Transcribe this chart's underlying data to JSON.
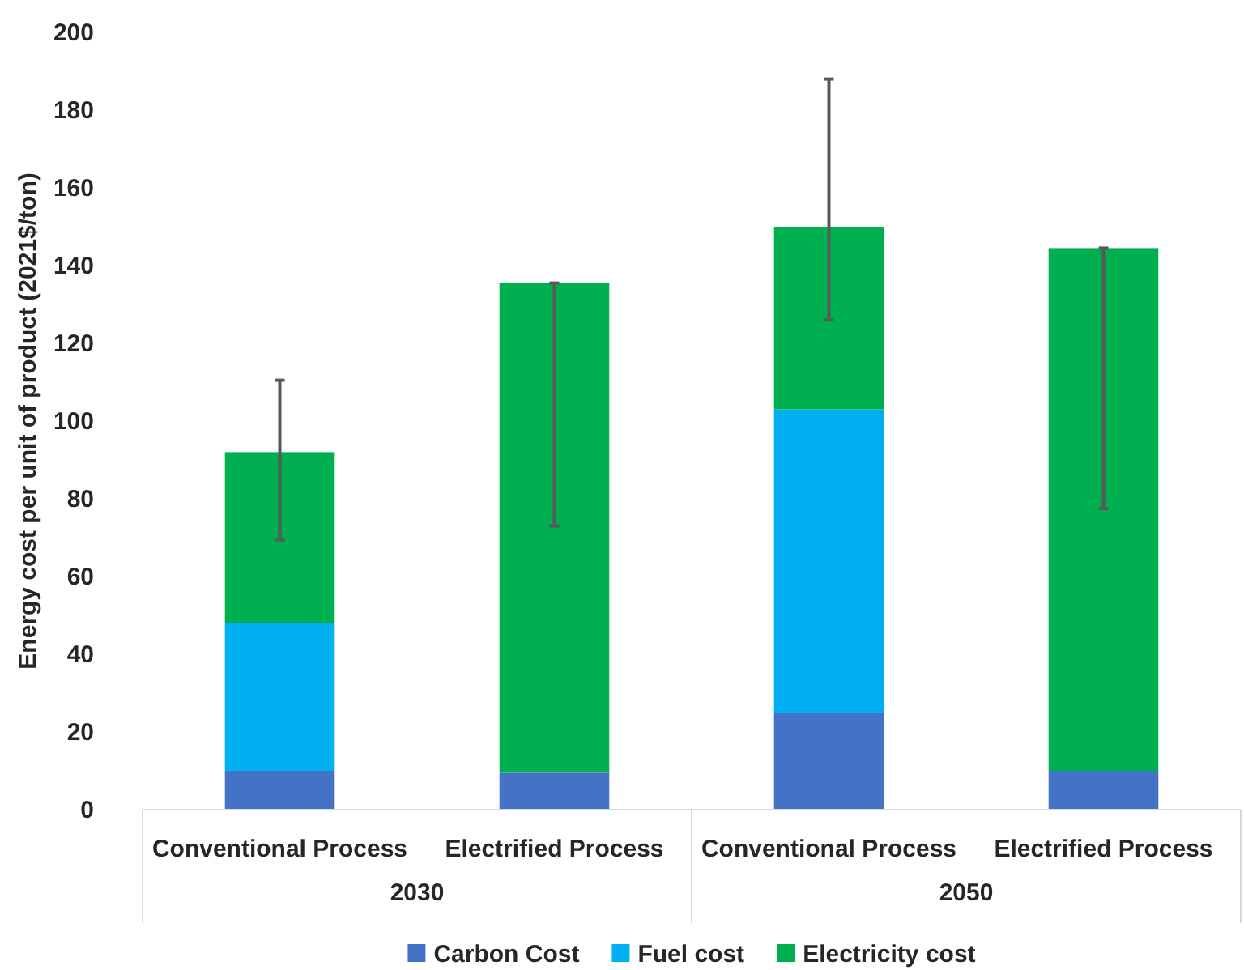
{
  "chart_data": {
    "type": "bar",
    "stacked": true,
    "ylabel": "Energy cost per unit of product (2021$/ton)",
    "categories": [
      "Conventional Process",
      "Electrified Process",
      "Conventional Process",
      "Electrified Process"
    ],
    "annotations": [
      "2030",
      "2050"
    ],
    "ylim": [
      0,
      200
    ],
    "yticks": [
      0,
      20,
      40,
      60,
      80,
      100,
      120,
      140,
      160,
      180,
      200
    ],
    "grid": false,
    "legend": "bottom",
    "series": [
      {
        "name": "Carbon Cost",
        "color": "#4472c4",
        "values": [
          10,
          9.5,
          25,
          10
        ]
      },
      {
        "name": "Fuel cost",
        "color": "#00b0f0",
        "values": [
          38,
          0,
          78,
          0
        ]
      },
      {
        "name": "Electricity cost",
        "color": "#00b050",
        "values": [
          44,
          126,
          47,
          134.5
        ],
        "errors": [
          [
            69.5,
            110.5
          ],
          [
            73,
            135.5
          ],
          [
            126,
            188
          ],
          [
            77.5,
            144.5
          ]
        ]
      }
    ]
  }
}
